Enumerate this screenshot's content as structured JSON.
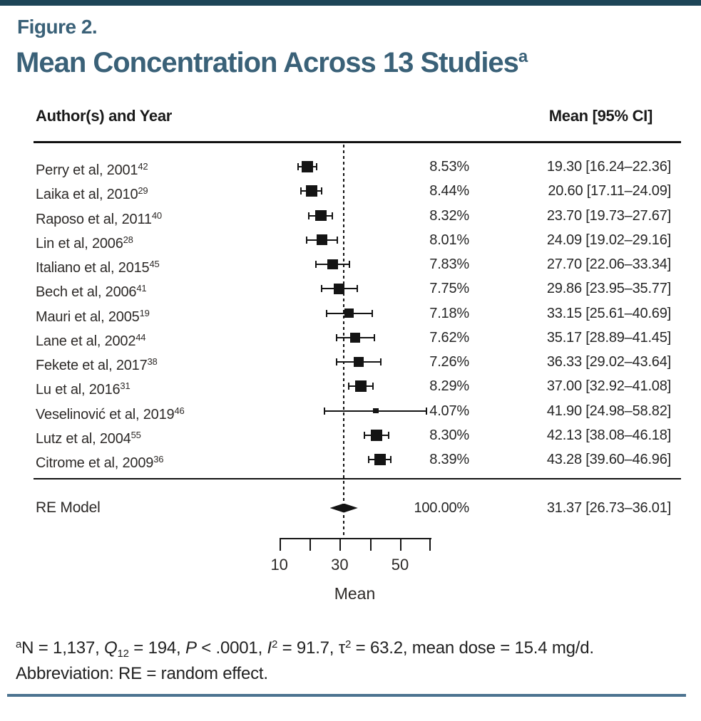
{
  "header": {
    "figure_label": "Figure 2.",
    "title": "Mean Concentration Across 13 Studies",
    "title_superscript": "a"
  },
  "table": {
    "left_header": "Author(s) and Year",
    "right_header": "Mean [95% CI]"
  },
  "chart_data": {
    "type": "forest",
    "xlabel": "Mean",
    "x_axis": {
      "min": 10,
      "max": 60,
      "ticks": [
        10,
        20,
        30,
        40,
        50,
        60
      ],
      "labeled_ticks": [
        10,
        30,
        50
      ]
    },
    "reference_line_x": 31.37,
    "studies": [
      {
        "author": "Perry et al, 2001",
        "ref": "42",
        "weight": 8.53,
        "weight_pct": "8.53%",
        "mean": 19.3,
        "ci_low": 16.24,
        "ci_high": 22.36,
        "ci_text": "19.30 [16.24–22.36]"
      },
      {
        "author": "Laika et al, 2010",
        "ref": "29",
        "weight": 8.44,
        "weight_pct": "8.44%",
        "mean": 20.6,
        "ci_low": 17.11,
        "ci_high": 24.09,
        "ci_text": "20.60 [17.11–24.09]"
      },
      {
        "author": "Raposo et al, 2011",
        "ref": "40",
        "weight": 8.32,
        "weight_pct": "8.32%",
        "mean": 23.7,
        "ci_low": 19.73,
        "ci_high": 27.67,
        "ci_text": "23.70 [19.73–27.67]"
      },
      {
        "author": "Lin et al, 2006",
        "ref": "28",
        "weight": 8.01,
        "weight_pct": "8.01%",
        "mean": 24.09,
        "ci_low": 19.02,
        "ci_high": 29.16,
        "ci_text": "24.09 [19.02–29.16]"
      },
      {
        "author": "Italiano et al, 2015",
        "ref": "45",
        "weight": 7.83,
        "weight_pct": "7.83%",
        "mean": 27.7,
        "ci_low": 22.06,
        "ci_high": 33.34,
        "ci_text": "27.70 [22.06–33.34]"
      },
      {
        "author": "Bech et al, 2006",
        "ref": "41",
        "weight": 7.75,
        "weight_pct": "7.75%",
        "mean": 29.86,
        "ci_low": 23.95,
        "ci_high": 35.77,
        "ci_text": "29.86 [23.95–35.77]"
      },
      {
        "author": "Mauri et al, 2005",
        "ref": "19",
        "weight": 7.18,
        "weight_pct": "7.18%",
        "mean": 33.15,
        "ci_low": 25.61,
        "ci_high": 40.69,
        "ci_text": "33.15 [25.61–40.69]"
      },
      {
        "author": "Lane et al, 2002",
        "ref": "44",
        "weight": 7.62,
        "weight_pct": "7.62%",
        "mean": 35.17,
        "ci_low": 28.89,
        "ci_high": 41.45,
        "ci_text": "35.17 [28.89–41.45]"
      },
      {
        "author": "Fekete et al, 2017",
        "ref": "38",
        "weight": 7.26,
        "weight_pct": "7.26%",
        "mean": 36.33,
        "ci_low": 29.02,
        "ci_high": 43.64,
        "ci_text": "36.33 [29.02–43.64]"
      },
      {
        "author": "Lu et al, 2016",
        "ref": "31",
        "weight": 8.29,
        "weight_pct": "8.29%",
        "mean": 37.0,
        "ci_low": 32.92,
        "ci_high": 41.08,
        "ci_text": "37.00 [32.92–41.08]"
      },
      {
        "author": "Veselinović et al, 2019",
        "ref": "46",
        "weight": 4.07,
        "weight_pct": "4.07%",
        "mean": 41.9,
        "ci_low": 24.98,
        "ci_high": 58.82,
        "ci_text": "41.90 [24.98–58.82]"
      },
      {
        "author": "Lutz et al, 2004",
        "ref": "55",
        "weight": 8.3,
        "weight_pct": "8.30%",
        "mean": 42.13,
        "ci_low": 38.08,
        "ci_high": 46.18,
        "ci_text": "42.13 [38.08–46.18]"
      },
      {
        "author": "Citrome et al, 2009",
        "ref": "36",
        "weight": 8.39,
        "weight_pct": "8.39%",
        "mean": 43.28,
        "ci_low": 39.6,
        "ci_high": 46.96,
        "ci_text": "43.28 [39.60–46.96]"
      }
    ],
    "summary": {
      "label": "RE Model",
      "weight_pct": "100.00%",
      "mean": 31.37,
      "ci_low": 26.73,
      "ci_high": 36.01,
      "ci_text": "31.37 [26.73–36.01]"
    }
  },
  "footnote": {
    "line1_segments": [
      {
        "text": "a",
        "style": "sup"
      },
      {
        "text": "N",
        "style": "normal"
      },
      {
        "text": " = 1,137, ",
        "style": "normal"
      },
      {
        "text": "Q",
        "style": "italic"
      },
      {
        "text": "12",
        "style": "sub"
      },
      {
        "text": " = 194, ",
        "style": "normal"
      },
      {
        "text": "P",
        "style": "italic"
      },
      {
        "text": " < .0001, ",
        "style": "normal"
      },
      {
        "text": "I",
        "style": "italic"
      },
      {
        "text": "2",
        "style": "sup"
      },
      {
        "text": " = 91.7, τ",
        "style": "normal"
      },
      {
        "text": "2",
        "style": "sup"
      },
      {
        "text": " = 63.2, mean dose = 15.4 mg/d.",
        "style": "normal"
      }
    ],
    "abbreviation": "Abbreviation: RE = random effect."
  },
  "colors": {
    "accent_teal": "#1d4557",
    "title_blue": "#3a6178",
    "rule_blue": "#4c7390",
    "ink": "#141414"
  }
}
